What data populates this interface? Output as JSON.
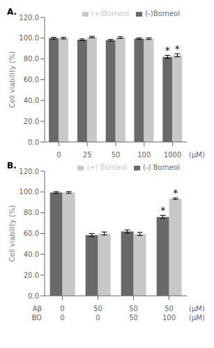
{
  "chart_data": [
    {
      "type": "bar",
      "title": "A.",
      "categories": [
        "0",
        "25",
        "50",
        "100",
        "1000"
      ],
      "xlabel": "(μM)",
      "ylabel": "Cell viability (%)",
      "ylim": [
        0,
        120
      ],
      "yticks": [
        {
          "value": 0,
          "label": "0.0"
        },
        {
          "value": 20,
          "label": "20.0"
        },
        {
          "value": 40,
          "label": "40.0"
        },
        {
          "value": 60,
          "label": "60.0"
        },
        {
          "value": 80,
          "label": "80.0"
        },
        {
          "value": 100,
          "label": "100.0"
        },
        {
          "value": 120,
          "label": "120.0"
        }
      ],
      "legend": "upper right",
      "grid": false,
      "series": [
        {
          "name": "(-)Borneol",
          "color": "#696969",
          "values": [
            100.0,
            98.5,
            98.0,
            99.5,
            82.0
          ],
          "errors": [
            0.8,
            0.8,
            0.8,
            0.8,
            1.5
          ],
          "annotations": [
            null,
            null,
            null,
            null,
            "*"
          ]
        },
        {
          "name": "(+)Borneol",
          "color": "#C8C8C8",
          "values": [
            100.0,
            101.0,
            100.5,
            99.5,
            83.5
          ],
          "errors": [
            0.8,
            0.8,
            0.8,
            0.8,
            1.5
          ],
          "annotations": [
            null,
            null,
            null,
            null,
            "*"
          ]
        }
      ]
    },
    {
      "type": "bar",
      "title": "B.",
      "x_rows": [
        {
          "label": "Aβ",
          "categories": [
            "0",
            "50",
            "50",
            "50"
          ],
          "unit": "(μM)"
        },
        {
          "label": "BO",
          "categories": [
            "0",
            "0",
            "50",
            "100"
          ],
          "unit": "(μM)"
        }
      ],
      "ylabel": "Cell viability (%)",
      "ylim": [
        0,
        120
      ],
      "yticks": [
        {
          "value": 0,
          "label": "0.0"
        },
        {
          "value": 20,
          "label": "20.0"
        },
        {
          "value": 40,
          "label": "40.0"
        },
        {
          "value": 60,
          "label": "60.0"
        },
        {
          "value": 80,
          "label": "80.0"
        },
        {
          "value": 100,
          "label": "100.0"
        },
        {
          "value": 120,
          "label": "120.0"
        }
      ],
      "legend": "upper right",
      "grid": false,
      "series": [
        {
          "name": "(-) Borneol",
          "color": "#696969",
          "values": [
            99.5,
            58.5,
            62.0,
            76.0
          ],
          "errors": [
            0.8,
            1.5,
            1.5,
            1.5
          ],
          "annotations": [
            null,
            null,
            null,
            "*"
          ]
        },
        {
          "name": "(+) Borneol",
          "color": "#C8C8C8",
          "values": [
            99.5,
            60.0,
            59.5,
            93.5
          ],
          "errors": [
            0.8,
            1.5,
            1.5,
            0.8
          ],
          "annotations": [
            null,
            null,
            null,
            "*"
          ]
        }
      ]
    }
  ]
}
